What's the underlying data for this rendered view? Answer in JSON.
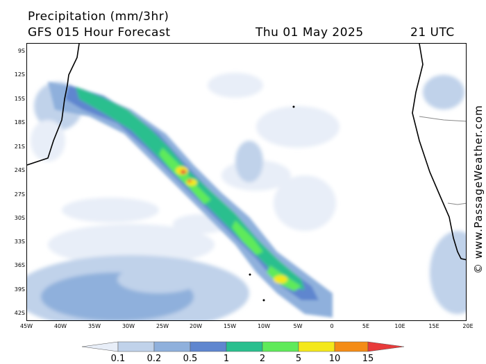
{
  "header": {
    "title": "Precipitation (mm/3hr)",
    "subtitle": "GFS 015 Hour Forecast",
    "date": "Thu 01 May 2025",
    "time": "21 UTC"
  },
  "map": {
    "lat_labels": [
      "9S",
      "12S",
      "15S",
      "18S",
      "21S",
      "24S",
      "27S",
      "30S",
      "33S",
      "36S",
      "39S",
      "42S"
    ],
    "lon_labels": [
      "45W",
      "40W",
      "35W",
      "30W",
      "25W",
      "20W",
      "15W",
      "10W",
      "5W",
      "0",
      "5E",
      "10E",
      "15E",
      "20E"
    ],
    "land_colors": {
      "coast": "#000000",
      "border": "#888888"
    }
  },
  "legend": {
    "labels": [
      "0.1",
      "0.2",
      "0.5",
      "1",
      "2",
      "5",
      "10",
      "15"
    ],
    "colors": [
      "#e8eef8",
      "#c0d2ea",
      "#8fb0dc",
      "#5f86cf",
      "#29bf8e",
      "#5fea5a",
      "#f4e81a",
      "#f48c16",
      "#e83b3b"
    ]
  },
  "credit": "© www.PassageWeather.com"
}
